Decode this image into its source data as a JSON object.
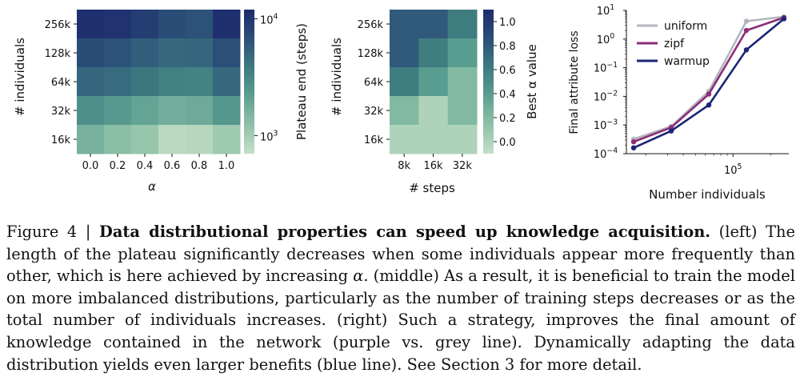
{
  "figure": {
    "caption": {
      "label": "Figure 4 | ",
      "title": "Data distributional properties can speed up knowledge acquisition.",
      "part1": " (left) The length of the plateau significantly decreases when some individuals appear more frequently than other, which is here achieved by increasing ",
      "alpha": "α",
      "part2": ". (middle) As a result, it is beneficial to train the model on more imbalanced distributions, particularly as the number of training steps decreases or as the total number of individuals increases. (right) Such a strategy, improves the final amount of knowledge contained in the network (purple vs. grey line). Dynamically adapting the data distribution yields even larger benefits (blue line). See Section 3 for more detail."
    }
  },
  "chart_data": [
    {
      "type": "heatmap",
      "xlabel": "α",
      "ylabel": "# individuals",
      "colorbar_label": "Plateau end (steps)",
      "colorbar_scale": "log",
      "colorbar_ticks": [
        {
          "base": "10",
          "exp": "4",
          "value": 10000
        },
        {
          "base": "10",
          "exp": "3",
          "value": 1000
        }
      ],
      "x": [
        "0.0",
        "0.2",
        "0.4",
        "0.6",
        "0.8",
        "1.0"
      ],
      "y": [
        "256k",
        "128k",
        "64k",
        "32k",
        "16k"
      ],
      "values": [
        [
          11000,
          10500,
          9000,
          7000,
          6500,
          11000
        ],
        [
          7000,
          6500,
          5500,
          4800,
          5000,
          6800
        ],
        [
          5000,
          4700,
          4000,
          3500,
          3400,
          4800
        ],
        [
          2800,
          2400,
          2000,
          1700,
          1800,
          2500
        ],
        [
          1600,
          1300,
          1150,
          780,
          820,
          1050
        ]
      ],
      "range": [
        700,
        12000
      ]
    },
    {
      "type": "heatmap",
      "xlabel": "# steps",
      "ylabel": "# individuals",
      "colorbar_label": "Best α value",
      "colorbar_ticks": [
        "1.0",
        "0.8",
        "0.6",
        "0.4",
        "0.2",
        "0.0"
      ],
      "x": [
        "8k",
        "16k",
        "32k"
      ],
      "y": [
        "256k",
        "128k",
        "64k",
        "32k",
        "16k"
      ],
      "values": [
        [
          0.8,
          0.8,
          0.6
        ],
        [
          0.8,
          0.6,
          0.4
        ],
        [
          0.6,
          0.4,
          0.2
        ],
        [
          0.2,
          0.0,
          0.2
        ],
        [
          0.0,
          0.0,
          0.0
        ]
      ],
      "range": [
        -0.1,
        1.1
      ]
    },
    {
      "type": "line",
      "xlabel": "Number individuals",
      "ylabel": "Final attribute loss",
      "xscale": "log",
      "yscale": "log",
      "xlim": [
        14000,
        280000
      ],
      "ylim": [
        0.0001,
        10
      ],
      "x_ticks": [
        {
          "base": "10",
          "exp": "5",
          "value": 100000
        }
      ],
      "y_ticks": [
        {
          "base": "10",
          "exp": "1",
          "value": 10
        },
        {
          "base": "10",
          "exp": "0",
          "value": 1
        },
        {
          "base": "10",
          "exp": "−1",
          "value": 0.1
        },
        {
          "base": "10",
          "exp": "−2",
          "value": 0.01
        },
        {
          "base": "10",
          "exp": "−3",
          "value": 0.001
        },
        {
          "base": "10",
          "exp": "−4",
          "value": 0.0001
        }
      ],
      "x": [
        16000,
        32000,
        64000,
        128000,
        256000
      ],
      "legend_position": "top-left",
      "series": [
        {
          "name": "uniform",
          "color": "#b3b6bf",
          "values": [
            0.00032,
            0.0009,
            0.015,
            4.2,
            6.0
          ]
        },
        {
          "name": "zipf",
          "color": "#8b2d78",
          "values": [
            0.00026,
            0.00082,
            0.012,
            2.0,
            5.6
          ]
        },
        {
          "name": "warmup",
          "color": "#1b2574",
          "values": [
            0.00016,
            0.00062,
            0.005,
            0.42,
            5.1
          ]
        }
      ]
    }
  ]
}
